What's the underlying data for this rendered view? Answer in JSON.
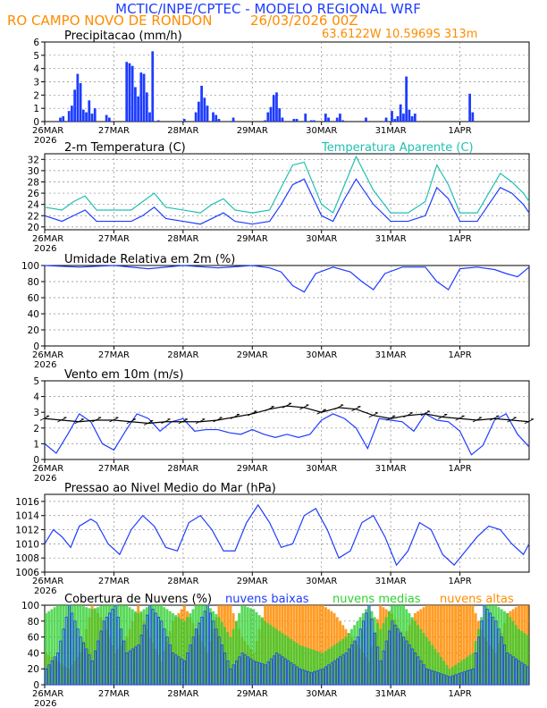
{
  "header": {
    "title": "MCTIC/INPE/CPTEC - MODELO REGIONAL WRF",
    "location": "RO CAMPO NOVO DE RONDON",
    "date": "26/03/2026 00Z",
    "coords": "63.6122W 10.5969S 313m"
  },
  "colors": {
    "title": "#1e3cff",
    "orange": "#ff8c00",
    "blue": "#1e3cff",
    "cyan": "#20c0b0",
    "green": "#30d030",
    "black": "#000000",
    "grid": "#888888"
  },
  "x_axis": {
    "ticks": [
      "26MAR",
      "27MAR",
      "28MAR",
      "29MAR",
      "30MAR",
      "31MAR",
      "1APR"
    ],
    "year": "2026",
    "hours": 168
  },
  "chart_data": [
    {
      "name": "precip",
      "type": "bar",
      "title": "Precipitacao (mm/h)",
      "ylim": [
        0,
        6
      ],
      "yticks": [
        "0",
        "1",
        "2",
        "3",
        "4",
        "5",
        "6"
      ],
      "x": [
        5,
        6,
        8,
        9,
        10,
        11,
        12,
        13,
        14,
        15,
        16,
        17,
        21,
        22,
        28,
        29,
        30,
        31,
        32,
        33,
        34,
        35,
        36,
        37,
        39,
        48,
        52,
        53,
        54,
        55,
        56,
        58,
        59,
        60,
        65,
        76,
        77,
        78,
        79,
        80,
        81,
        82,
        86,
        87,
        90,
        92,
        93,
        97,
        98,
        101,
        102,
        103,
        111,
        118,
        120,
        121,
        122,
        123,
        124,
        125,
        126,
        127,
        128,
        147,
        148
      ],
      "values": [
        0.3,
        0.4,
        0.8,
        1.2,
        2.4,
        3.6,
        2.9,
        0.9,
        0.7,
        1.6,
        0.6,
        1.0,
        0.5,
        0.3,
        4.5,
        4.4,
        4.2,
        2.6,
        1.9,
        3.7,
        3.6,
        2.2,
        0.7,
        5.3,
        0.1,
        0.2,
        0.7,
        1.5,
        2.7,
        1.8,
        1.2,
        0.7,
        0.5,
        0.2,
        0.3,
        0.1,
        0.7,
        1.1,
        2.0,
        2.2,
        1.0,
        0.3,
        0.2,
        0.2,
        0.6,
        0.1,
        0.1,
        0.6,
        0.3,
        0.3,
        0.6,
        0.1,
        0.3,
        0.3,
        0.8,
        0.2,
        0.4,
        1.3,
        0.6,
        3.4,
        0.9,
        0.4,
        0.6,
        2.1,
        0.7
      ]
    },
    {
      "name": "temperature",
      "type": "line",
      "title": "2-m Temperatura (C)",
      "legend": "Temperatura Aparente (C)",
      "ylim": [
        19.5,
        33
      ],
      "yticks": [
        "20",
        "22",
        "24",
        "26",
        "28",
        "30",
        "32"
      ],
      "series": [
        {
          "name": "Temperatura 2m",
          "color": "#1e3cff",
          "x": [
            0,
            6,
            10,
            14,
            18,
            24,
            30,
            34,
            38,
            42,
            48,
            54,
            58,
            62,
            66,
            72,
            78,
            82,
            86,
            90,
            96,
            100,
            104,
            108,
            114,
            120,
            126,
            132,
            136,
            140,
            144,
            150,
            154,
            158,
            162,
            166,
            168
          ],
          "values": [
            22,
            21,
            22,
            23,
            21,
            21,
            21,
            22,
            23.5,
            21.5,
            21,
            20.5,
            21.5,
            22.5,
            21,
            20.5,
            21,
            24,
            27.5,
            28.5,
            22,
            21,
            25,
            28.5,
            24,
            21,
            21,
            22,
            27,
            25,
            21,
            21,
            24,
            27,
            26,
            24,
            22.5
          ]
        },
        {
          "name": "Temperatura Aparente",
          "color": "#20c0b0",
          "x": [
            0,
            6,
            10,
            14,
            18,
            24,
            30,
            34,
            38,
            42,
            48,
            54,
            58,
            62,
            66,
            72,
            78,
            82,
            86,
            90,
            96,
            100,
            104,
            108,
            114,
            120,
            126,
            132,
            136,
            140,
            144,
            150,
            154,
            158,
            162,
            166,
            168
          ],
          "values": [
            23.5,
            23,
            24.5,
            25.5,
            23,
            23,
            23,
            24.5,
            26,
            23.5,
            23,
            22.5,
            24,
            25,
            23,
            22.5,
            23,
            27,
            31,
            31.5,
            24,
            22.5,
            27.5,
            32.5,
            26.5,
            22.5,
            22.5,
            24.5,
            31,
            27.5,
            22.5,
            22.5,
            26,
            29.5,
            28,
            26,
            24.5
          ]
        }
      ]
    },
    {
      "name": "humidity",
      "type": "line",
      "title": "Umidade Relativa em 2m (%)",
      "ylim": [
        0,
        100
      ],
      "yticks": [
        "0",
        "20",
        "40",
        "60",
        "80",
        "100"
      ],
      "series": [
        {
          "name": "Umidade Relativa",
          "color": "#1e3cff",
          "x": [
            0,
            12,
            24,
            36,
            48,
            60,
            72,
            78,
            82,
            86,
            90,
            94,
            100,
            106,
            110,
            114,
            118,
            124,
            132,
            136,
            140,
            144,
            150,
            156,
            160,
            164,
            168
          ],
          "values": [
            100,
            98,
            100,
            96,
            100,
            97,
            100,
            97,
            92,
            75,
            67,
            90,
            98,
            92,
            80,
            70,
            90,
            98,
            98,
            80,
            70,
            96,
            98,
            95,
            90,
            86,
            98
          ]
        }
      ]
    },
    {
      "name": "wind",
      "type": "line",
      "title": "Vento em 10m (m/s)",
      "ylim": [
        0,
        5
      ],
      "yticks": [
        "0",
        "1",
        "2",
        "3",
        "4",
        "5"
      ],
      "series": [
        {
          "name": "Velocidade",
          "color": "#1e3cff",
          "x": [
            0,
            4,
            8,
            12,
            16,
            20,
            24,
            28,
            32,
            36,
            40,
            44,
            48,
            52,
            56,
            60,
            64,
            68,
            72,
            76,
            80,
            84,
            88,
            92,
            96,
            100,
            104,
            108,
            112,
            116,
            120,
            124,
            128,
            132,
            136,
            140,
            144,
            148,
            152,
            156,
            160,
            164,
            168
          ],
          "values": [
            1,
            0.4,
            1.6,
            2.9,
            2.4,
            1,
            0.6,
            1.8,
            2.9,
            2.6,
            1.8,
            2.4,
            2.6,
            1.8,
            1.9,
            1.9,
            1.7,
            1.6,
            1.9,
            1.6,
            1.4,
            1.6,
            1.4,
            1.6,
            2.5,
            2.9,
            2.6,
            2,
            0.7,
            2.6,
            2.5,
            2.4,
            1.8,
            2.9,
            2.5,
            2.4,
            1.8,
            0.3,
            0.9,
            2.5,
            2.9,
            1.6,
            0.8
          ]
        },
        {
          "name": "Vetores",
          "color": "#000000",
          "x": [
            0,
            6,
            12,
            18,
            24,
            30,
            36,
            42,
            48,
            54,
            60,
            66,
            72,
            78,
            84,
            90,
            96,
            102,
            108,
            114,
            120,
            126,
            132,
            138,
            144,
            150,
            156,
            162,
            168
          ],
          "values": [
            2.6,
            2.5,
            2.4,
            2.5,
            2.5,
            2.4,
            2.3,
            2.4,
            2.4,
            2.4,
            2.5,
            2.7,
            2.9,
            3.2,
            3.4,
            3.3,
            3.0,
            3.3,
            3.2,
            2.8,
            2.6,
            2.8,
            2.9,
            2.7,
            2.6,
            2.5,
            2.6,
            2.5,
            2.4
          ]
        }
      ]
    },
    {
      "name": "pressure",
      "type": "line",
      "title": "Pressao ao Nivel Medio do Mar (hPa)",
      "ylim": [
        1006,
        1017
      ],
      "yticks": [
        "1006",
        "1008",
        "1010",
        "1012",
        "1014",
        "1016"
      ],
      "series": [
        {
          "name": "PNMM",
          "color": "#1e3cff",
          "x": [
            0,
            3,
            6,
            9,
            12,
            16,
            18,
            22,
            26,
            30,
            34,
            38,
            42,
            46,
            50,
            54,
            58,
            62,
            66,
            70,
            74,
            78,
            82,
            86,
            90,
            94,
            98,
            102,
            106,
            110,
            114,
            118,
            122,
            126,
            130,
            134,
            138,
            142,
            146,
            150,
            154,
            158,
            162,
            166,
            168
          ],
          "values": [
            1010,
            1012,
            1011,
            1009.5,
            1012.5,
            1013.5,
            1013,
            1010,
            1008.5,
            1012,
            1014,
            1012.5,
            1009.5,
            1009,
            1013,
            1014,
            1012,
            1009,
            1009,
            1013,
            1015.5,
            1013,
            1009.5,
            1010,
            1014,
            1015,
            1012,
            1008,
            1009,
            1013,
            1014,
            1011,
            1007,
            1009,
            1013,
            1012,
            1008.5,
            1007,
            1009,
            1011,
            1012.5,
            1012,
            1010,
            1008.5,
            1010
          ]
        }
      ]
    },
    {
      "name": "clouds",
      "type": "bar",
      "title": "Cobertura de Nuvens (%)",
      "ylim": [
        0,
        100
      ],
      "yticks": [
        "0",
        "20",
        "40",
        "60",
        "80",
        "100"
      ],
      "legend": [
        "nuvens baixas",
        "nuvens medias",
        "nuvens altas"
      ],
      "series": [
        {
          "name": "nuvens baixas",
          "color": "#1e3cff",
          "x": [
            0,
            4,
            8,
            12,
            16,
            20,
            24,
            28,
            32,
            36,
            40,
            44,
            48,
            52,
            56,
            60,
            64,
            68,
            72,
            76,
            80,
            84,
            88,
            92,
            96,
            100,
            104,
            108,
            112,
            116,
            120,
            124,
            128,
            132,
            136,
            140,
            144,
            148,
            152,
            156,
            160,
            164,
            168
          ],
          "values": [
            20,
            40,
            100,
            60,
            30,
            80,
            100,
            40,
            50,
            100,
            80,
            40,
            30,
            70,
            100,
            60,
            20,
            40,
            30,
            25,
            40,
            30,
            20,
            15,
            20,
            30,
            40,
            60,
            100,
            30,
            80,
            60,
            40,
            20,
            15,
            10,
            15,
            20,
            100,
            80,
            40,
            30,
            20
          ]
        },
        {
          "name": "nuvens medias",
          "color": "#30d030",
          "x": [
            0,
            4,
            8,
            12,
            16,
            20,
            24,
            28,
            32,
            36,
            40,
            44,
            48,
            52,
            56,
            60,
            64,
            68,
            72,
            76,
            80,
            84,
            88,
            92,
            96,
            100,
            104,
            108,
            112,
            116,
            120,
            124,
            128,
            132,
            136,
            140,
            144,
            148,
            152,
            156,
            160,
            164,
            168
          ],
          "values": [
            90,
            100,
            100,
            100,
            95,
            100,
            100,
            100,
            90,
            100,
            100,
            90,
            80,
            100,
            100,
            85,
            60,
            100,
            95,
            80,
            70,
            60,
            50,
            45,
            40,
            50,
            60,
            80,
            100,
            70,
            100,
            100,
            80,
            60,
            40,
            20,
            30,
            40,
            100,
            100,
            90,
            70,
            60
          ]
        },
        {
          "name": "nuvens altas",
          "color": "#ff8c00",
          "x": [
            0,
            4,
            8,
            12,
            16,
            20,
            24,
            28,
            32,
            36,
            40,
            44,
            48,
            52,
            56,
            60,
            64,
            68,
            72,
            76,
            80,
            84,
            88,
            92,
            96,
            100,
            104,
            108,
            112,
            116,
            120,
            124,
            128,
            132,
            136,
            140,
            144,
            148,
            152,
            156,
            160,
            164,
            168
          ],
          "values": [
            40,
            30,
            20,
            40,
            100,
            80,
            40,
            60,
            100,
            60,
            30,
            80,
            100,
            70,
            40,
            100,
            100,
            60,
            40,
            100,
            100,
            100,
            100,
            100,
            100,
            90,
            70,
            50,
            30,
            100,
            90,
            60,
            90,
            100,
            100,
            100,
            100,
            100,
            60,
            40,
            90,
            100,
            100
          ]
        }
      ]
    }
  ]
}
